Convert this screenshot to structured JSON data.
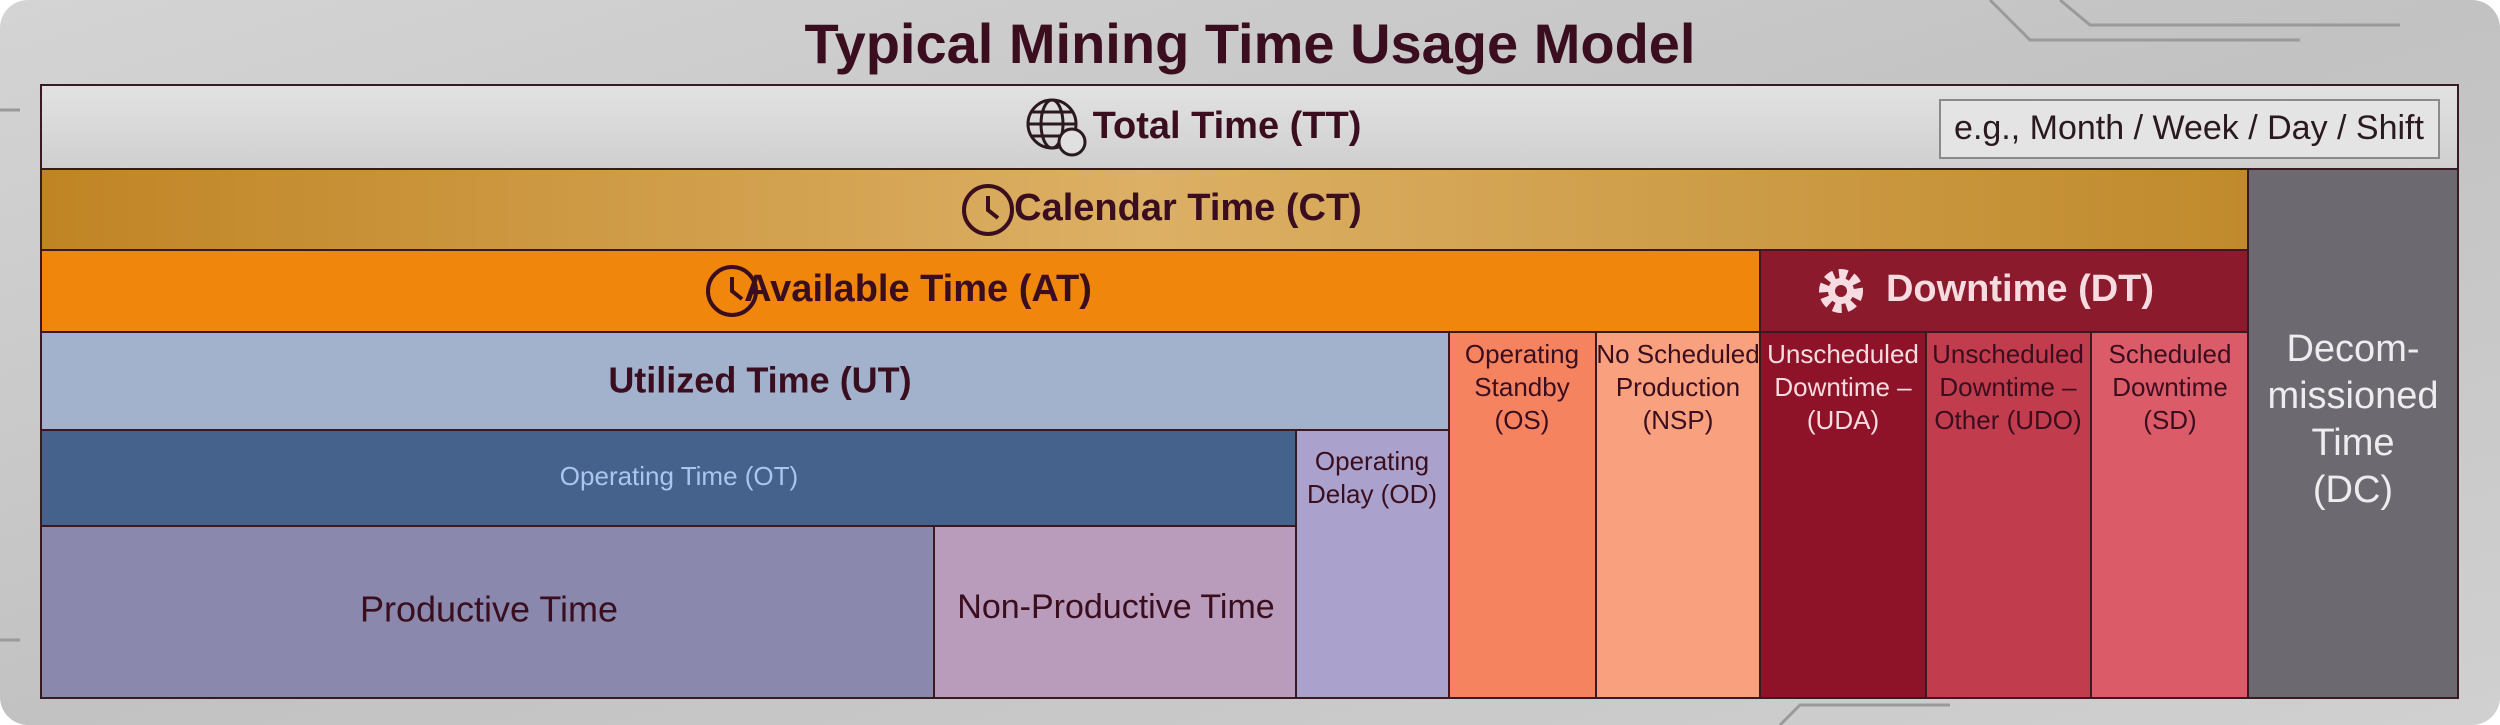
{
  "title": "Typical Mining Time Usage Model",
  "badge": "e.g., Month / Week / Day / Shift",
  "boxes": [
    {
      "lines": [
        "Total Time (TT)"
      ]
    },
    {
      "lines": [
        "Calendar Time (CT)"
      ]
    },
    {
      "lines": [
        "Available Time (AT)"
      ]
    },
    {
      "lines": [
        "Downtime (DT)"
      ]
    },
    {
      "lines": [
        "Utilized Time (UT)"
      ]
    },
    {
      "lines": [
        "Operating Time (OT)"
      ]
    },
    {
      "lines": [
        "Productive Time"
      ]
    },
    {
      "lines": [
        "Non-Productive Time"
      ]
    },
    {
      "lines": [
        "Operating",
        "Delay (OD)"
      ]
    },
    {
      "lines": [
        "Operating",
        "Standby",
        "(OS)"
      ]
    },
    {
      "lines": [
        "No Scheduled",
        "Production",
        "(NSP)"
      ]
    },
    {
      "lines": [
        "Unscheduled",
        "Downtime –",
        "(UDA)"
      ]
    },
    {
      "lines": [
        "Unscheduled",
        "Downtime –",
        "Other (UDO)"
      ]
    },
    {
      "lines": [
        "Scheduled",
        "Downtime",
        "(SD)"
      ]
    },
    {
      "lines": [
        "Decom-",
        "missioned",
        "Time",
        "(DC)"
      ]
    }
  ]
}
